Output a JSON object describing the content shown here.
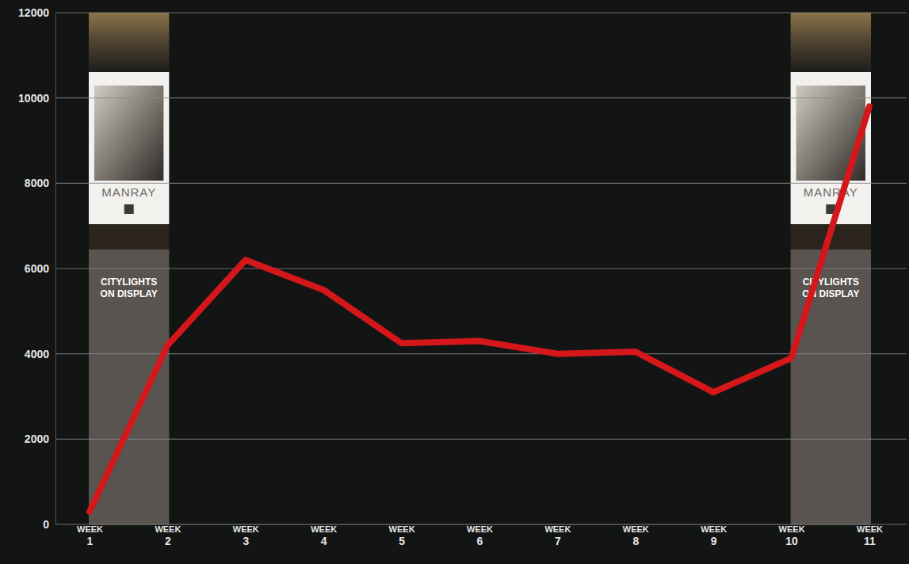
{
  "chart_data": {
    "type": "line",
    "categories": [
      "WEEK 1",
      "WEEK 2",
      "WEEK 3",
      "WEEK 4",
      "WEEK 5",
      "WEEK 6",
      "WEEK 7",
      "WEEK 8",
      "WEEK 9",
      "WEEK 10",
      "WEEK 11"
    ],
    "values": [
      300,
      4200,
      6200,
      5500,
      4250,
      4300,
      4000,
      4050,
      3100,
      3900,
      9800
    ],
    "color": "#d3171b",
    "ylim": [
      0,
      12000
    ],
    "yticks": [
      0,
      2000,
      4000,
      6000,
      8000,
      10000,
      12000
    ],
    "grid": true,
    "annotations": [
      {
        "text": "CITYLIGHTS ON DISPLAY",
        "poster": "MANRAY",
        "x": [
          "WEEK 1",
          "WEEK 2"
        ]
      },
      {
        "text": "CITYLIGHTS ON DISPLAY",
        "poster": "MANRAY",
        "x": [
          "WEEK 10",
          "WEEK 11"
        ]
      }
    ]
  }
}
